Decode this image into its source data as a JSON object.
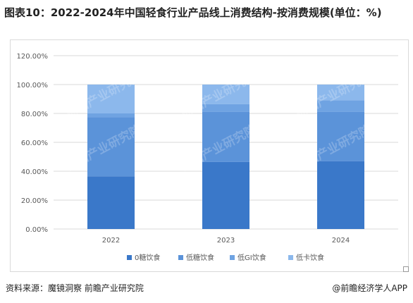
{
  "title": "图表10：2022-2024年中国轻食行业产品线上消费结构-按消费规模(单位：%)",
  "footer": {
    "source": "资料来源：魔镜洞察 前瞻产业研究院",
    "brand": "@前瞻经济学人APP"
  },
  "watermark": "前瞻产业研究院",
  "chart_data": {
    "type": "bar",
    "stacked": true,
    "categories": [
      "2022",
      "2023",
      "2024"
    ],
    "series": [
      {
        "name": "0糖饮食",
        "color": "#3a78c9",
        "values": [
          36.5,
          46.5,
          47.0
        ]
      },
      {
        "name": "低糖饮食",
        "color": "#5b93d9",
        "values": [
          41.0,
          34.5,
          34.0
        ]
      },
      {
        "name": "低GI饮食",
        "color": "#6fa3e2",
        "values": [
          2.5,
          5.5,
          8.0
        ]
      },
      {
        "name": "低卡饮食",
        "color": "#8cb8ec",
        "values": [
          20.0,
          13.5,
          11.0
        ]
      }
    ],
    "ylim": [
      0,
      120
    ],
    "yticks": [
      "0.00%",
      "20.00%",
      "40.00%",
      "60.00%",
      "80.00%",
      "100.00%",
      "120.00%"
    ],
    "ytick_values": [
      0,
      20,
      40,
      60,
      80,
      100,
      120
    ],
    "grid": true,
    "legend_position": "bottom"
  }
}
